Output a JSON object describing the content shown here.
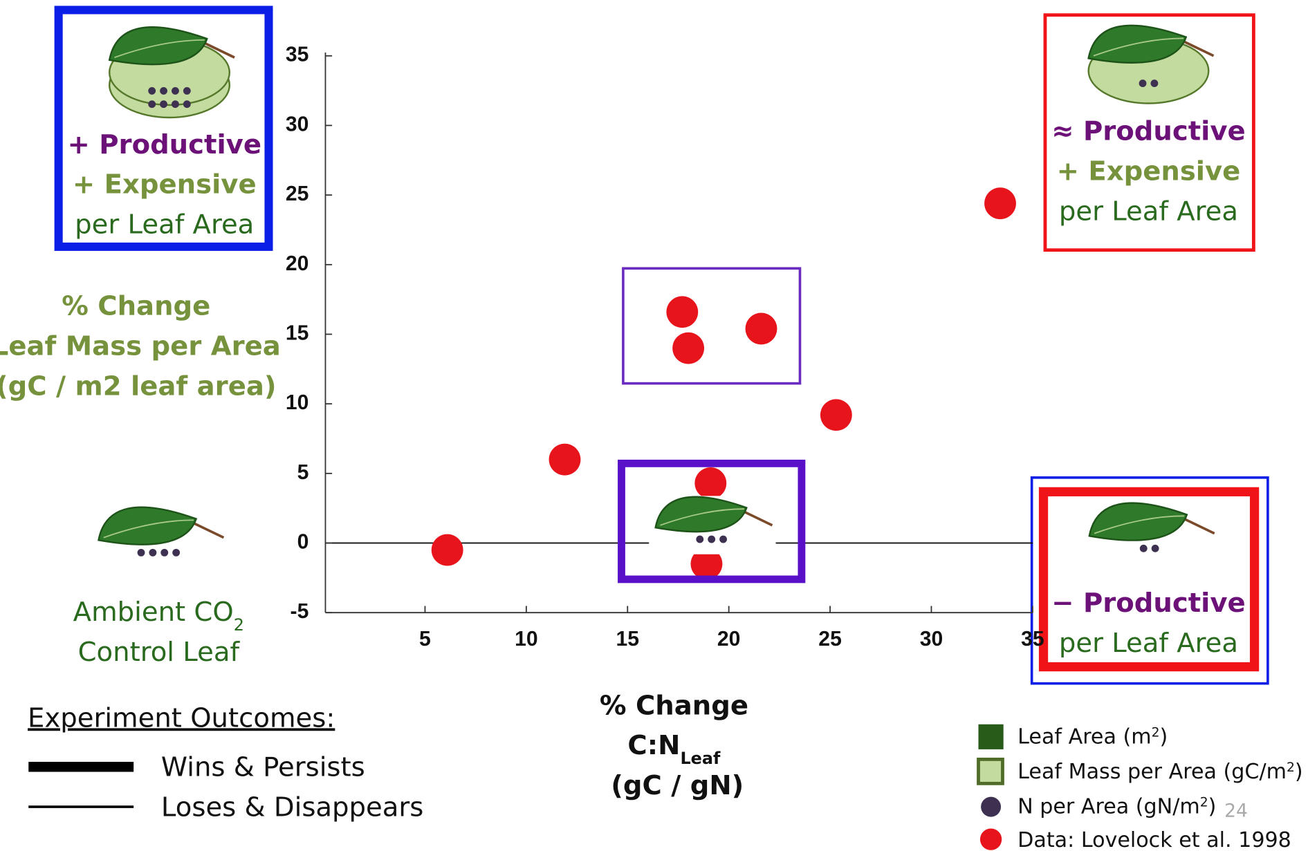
{
  "chart_data": {
    "type": "scatter",
    "x": [
      6.1,
      11.9,
      17.7,
      18.0,
      21.6,
      25.3,
      33.4,
      19.1,
      18.9
    ],
    "series": [
      {
        "name": "Data: Lovelock et al. 1998",
        "color": "#e8141c",
        "values": [
          -0.5,
          6.0,
          16.6,
          14.0,
          15.4,
          9.2,
          24.4,
          4.3,
          -1.5
        ]
      }
    ],
    "xlim": [
      0,
      35
    ],
    "xticks": [
      5,
      10,
      15,
      20,
      25,
      30,
      35
    ],
    "ylim": [
      -5,
      35
    ],
    "yticks": [
      -5,
      0,
      5,
      10,
      15,
      20,
      25,
      30,
      35
    ],
    "ylabel": [
      "% Change",
      "Leaf Mass per Area",
      "(gC / m2 leaf area)"
    ],
    "xlabel": {
      "line1": "% Change",
      "line2": "C:N",
      "line2_sub": "Leaf",
      "line3": "(gC / gN)"
    },
    "panels": [
      [
        "+ Productive",
        "+ Expensive",
        "per Leaf Area"
      ],
      [
        "≈ Productive",
        "+ Expensive",
        "per Leaf Area"
      ],
      [
        "− Productive",
        "per Leaf Area"
      ]
    ],
    "control": {
      "line1": "Ambient CO",
      "line1_sub": "2",
      "line2": "Control Leaf"
    },
    "outcomes": {
      "title": "Experiment Outcomes:",
      "items": [
        "Wins & Persists",
        "Loses & Disappears"
      ]
    },
    "legend_items": [
      {
        "text": "Leaf Area (m",
        "sup": "2",
        "end": ")"
      },
      {
        "text": "Leaf Mass per Area (gC/m",
        "sup": "2",
        "end": ")"
      },
      {
        "text": "N per Area (gN/m",
        "sup": "2",
        "end": ")"
      }
    ],
    "page_number": "24"
  }
}
